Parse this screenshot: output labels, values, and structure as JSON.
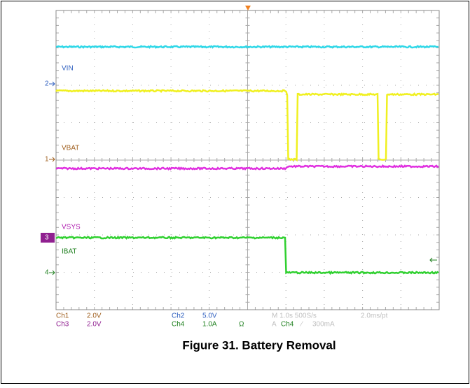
{
  "scope": {
    "trace_labels": {
      "vin": "VIN",
      "vbat": "VBAT",
      "vsys": "VSYS",
      "ibat": "IBAT"
    },
    "channel_markers": {
      "ch1": "1",
      "ch2": "2",
      "ch3": "3",
      "ch4": "4"
    },
    "readout": {
      "ch1": "Ch1",
      "ch1_scale": "2.0V",
      "ch3": "Ch3",
      "ch3_scale": "2.0V",
      "ch2": "Ch2",
      "ch2_scale": "5.0V",
      "ch4": "Ch4",
      "ch4_scale": "1.0A",
      "ch4_impedance": "Ω",
      "timebase": "M 1.0s 500S/s",
      "record": "2.0ms/pt",
      "trigger": "A",
      "trigger_channel": "Ch4",
      "trigger_slope": "⁄",
      "trigger_level": "300mA"
    }
  },
  "caption": "Figure 31. Battery Removal"
}
